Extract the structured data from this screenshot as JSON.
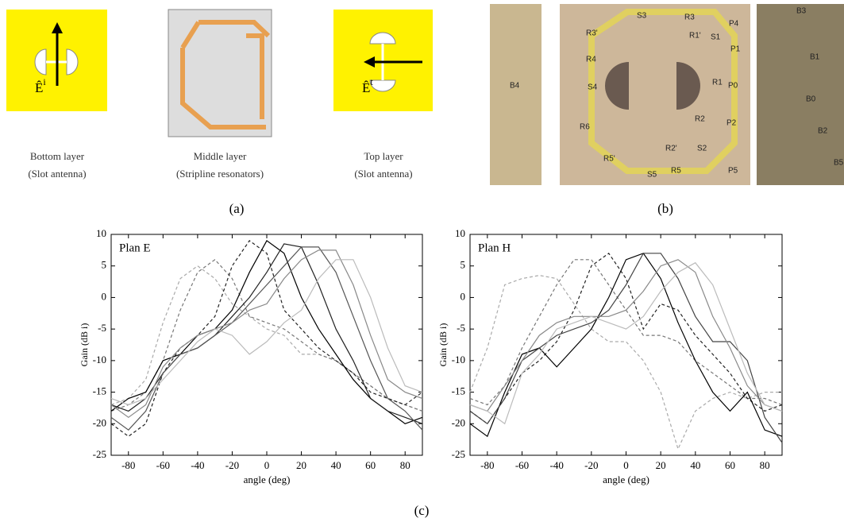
{
  "panel_a": {
    "layers": [
      {
        "label": "Bottom layer",
        "sub": "(Slot antenna)"
      },
      {
        "label": "Middle layer",
        "sub": "(Stripline resonators)"
      },
      {
        "label": "Top layer",
        "sub": "(Slot antenna)"
      }
    ],
    "field_bottom": {
      "base": "Ê",
      "sup": "i"
    },
    "field_top": {
      "base": "Ê",
      "sup": "t"
    },
    "caption": "(a)"
  },
  "panel_b": {
    "labels": [
      "S3",
      "R3",
      "R3'",
      "R1'",
      "S1",
      "P4",
      "R4",
      "P1",
      "B4",
      "S4",
      "R1",
      "P0",
      "R2",
      "P2",
      "S2",
      "R2'",
      "R6",
      "R5'",
      "S5",
      "R5",
      "P5",
      "B3",
      "B1",
      "B0",
      "B2",
      "B5"
    ],
    "caption": "(b)"
  },
  "chart_data": [
    {
      "type": "line",
      "title": "Plan E",
      "xlabel": "angle (deg)",
      "ylabel": "Gain (dB i)",
      "x": [
        -90,
        -80,
        -70,
        -60,
        -50,
        -40,
        -30,
        -20,
        -10,
        0,
        10,
        20,
        30,
        40,
        50,
        60,
        70,
        80,
        90
      ],
      "xlim": [
        -90,
        90
      ],
      "xticks": [
        -80,
        -60,
        -40,
        -20,
        0,
        20,
        40,
        60,
        80
      ],
      "ylim": [
        -25,
        10
      ],
      "yticks": [
        -25,
        -20,
        -15,
        -10,
        -5,
        0,
        5,
        10
      ],
      "series": [
        {
          "color": "#aaaaaa",
          "dashed": true,
          "values": [
            -17,
            -16,
            -13,
            -4,
            3,
            5,
            3,
            -1,
            -3,
            -5,
            -6,
            -9,
            -9,
            -10,
            -12,
            -14,
            -16,
            -17,
            -18
          ]
        },
        {
          "color": "#777777",
          "dashed": true,
          "values": [
            -18,
            -17,
            -15,
            -10,
            -2,
            4,
            6,
            3,
            -3,
            -4,
            -5,
            -7,
            -9,
            -10,
            -12,
            -14,
            -16,
            -17,
            -18
          ]
        },
        {
          "color": "#222222",
          "dashed": true,
          "values": [
            -20,
            -22,
            -20,
            -12,
            -8,
            -6,
            -3,
            5,
            9,
            7,
            -2,
            -5,
            -8,
            -10,
            -12,
            -15,
            -16,
            -17,
            -15
          ]
        },
        {
          "color": "#000000",
          "dashed": false,
          "values": [
            -18,
            -16,
            -15,
            -10,
            -9,
            -6,
            -5,
            -2,
            4,
            9,
            7,
            0,
            -5,
            -9,
            -13,
            -16,
            -18,
            -20,
            -19
          ]
        },
        {
          "color": "#222222",
          "dashed": false,
          "values": [
            -17,
            -18,
            -16,
            -12,
            -9,
            -8,
            -6,
            -3,
            0,
            4,
            8.5,
            8,
            2,
            -5,
            -10,
            -16,
            -18,
            -19,
            -20
          ]
        },
        {
          "color": "#555555",
          "dashed": false,
          "values": [
            -19,
            -21,
            -18,
            -12,
            -9,
            -8,
            -6,
            -4,
            -1,
            2,
            5,
            8,
            8,
            4,
            -3,
            -10,
            -16,
            -18,
            -21
          ]
        },
        {
          "color": "#888888",
          "dashed": false,
          "values": [
            -17,
            -19,
            -17,
            -11,
            -8,
            -6,
            -5,
            -4,
            -2,
            -1,
            3,
            6,
            7.5,
            7.5,
            2,
            -6,
            -13,
            -15,
            -16
          ]
        },
        {
          "color": "#bbbbbb",
          "dashed": false,
          "values": [
            -16,
            -17,
            -16,
            -13,
            -10,
            -7,
            -5,
            -6,
            -9,
            -7,
            -4,
            -2,
            3,
            6,
            6,
            0,
            -8,
            -14,
            -15
          ]
        }
      ]
    },
    {
      "type": "line",
      "title": "Plan H",
      "xlabel": "angle (deg)",
      "ylabel": "Gain (dB i)",
      "x": [
        -90,
        -80,
        -70,
        -60,
        -50,
        -40,
        -30,
        -20,
        -10,
        0,
        10,
        20,
        30,
        40,
        50,
        60,
        70,
        80,
        90
      ],
      "xlim": [
        -90,
        90
      ],
      "xticks": [
        -80,
        -60,
        -40,
        -20,
        0,
        20,
        40,
        60,
        80
      ],
      "ylim": [
        -25,
        10
      ],
      "yticks": [
        -25,
        -20,
        -15,
        -10,
        -5,
        0,
        5,
        10
      ],
      "series": [
        {
          "color": "#aaaaaa",
          "dashed": true,
          "values": [
            -15,
            -8,
            2,
            3,
            3.5,
            3,
            -1,
            -5,
            -7,
            -7,
            -10,
            -15,
            -24,
            -18,
            -16,
            -15,
            -16,
            -15,
            -15
          ]
        },
        {
          "color": "#777777",
          "dashed": true,
          "values": [
            -16,
            -17,
            -14,
            -8,
            -3,
            2,
            6,
            6,
            2,
            -2,
            -6,
            -6,
            -7,
            -10,
            -12,
            -14,
            -16,
            -16,
            -17
          ]
        },
        {
          "color": "#222222",
          "dashed": true,
          "values": [
            -18,
            -20,
            -16,
            -12,
            -10,
            -7,
            -2,
            5,
            7,
            3,
            -5,
            -1,
            -2,
            -6,
            -9,
            -12,
            -16,
            -18,
            -17
          ]
        },
        {
          "color": "#000000",
          "dashed": false,
          "values": [
            -20,
            -22,
            -15,
            -9,
            -8,
            -11,
            -8,
            -5,
            0,
            6,
            7,
            3,
            -4,
            -10,
            -15,
            -18,
            -15,
            -21,
            -22
          ]
        },
        {
          "color": "#444444",
          "dashed": false,
          "values": [
            -18,
            -20,
            -16,
            -10,
            -8,
            -6,
            -5,
            -4,
            -2,
            2,
            7,
            7,
            3,
            -3,
            -7,
            -7,
            -10,
            -19,
            -23
          ]
        },
        {
          "color": "#888888",
          "dashed": false,
          "values": [
            -17,
            -18,
            -14,
            -10,
            -6,
            -4,
            -3,
            -3,
            -3,
            -2,
            1,
            5,
            6,
            4,
            -3,
            -8,
            -14,
            -17,
            -18
          ]
        },
        {
          "color": "#bbbbbb",
          "dashed": false,
          "values": [
            -17,
            -18,
            -20,
            -12,
            -9,
            -5,
            -4,
            -3,
            -4,
            -5,
            -3,
            1,
            4,
            5.5,
            2,
            -5,
            -12,
            -17,
            -18
          ]
        }
      ]
    }
  ],
  "caption_c": "(c)"
}
